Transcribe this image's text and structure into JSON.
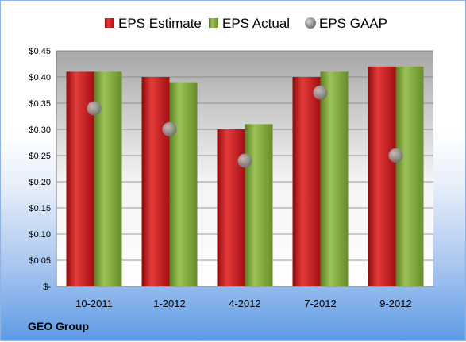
{
  "company": "GEO Group",
  "chart_data": {
    "type": "bar",
    "categories": [
      "10-2011",
      "1-2012",
      "4-2012",
      "7-2012",
      "9-2012"
    ],
    "series": [
      {
        "name": "EPS Estimate",
        "kind": "bar",
        "color": "#c8171b",
        "values": [
          0.41,
          0.4,
          0.3,
          0.4,
          0.42
        ]
      },
      {
        "name": "EPS Actual",
        "kind": "bar",
        "color": "#7fa33c",
        "values": [
          0.41,
          0.39,
          0.31,
          0.41,
          0.42
        ]
      },
      {
        "name": "EPS GAAP",
        "kind": "marker",
        "color": "#9a9a9a",
        "values": [
          0.34,
          0.3,
          0.24,
          0.37,
          0.25
        ]
      }
    ],
    "ylim": [
      0,
      0.45
    ],
    "yticks": [
      {
        "value": 0,
        "label": "$-"
      },
      {
        "value": 0.05,
        "label": "$0.05"
      },
      {
        "value": 0.1,
        "label": "$0.10"
      },
      {
        "value": 0.15,
        "label": "$0.15"
      },
      {
        "value": 0.2,
        "label": "$0.20"
      },
      {
        "value": 0.25,
        "label": "$0.25"
      },
      {
        "value": 0.3,
        "label": "$0.30"
      },
      {
        "value": 0.35,
        "label": "$0.35"
      },
      {
        "value": 0.4,
        "label": "$0.40"
      },
      {
        "value": 0.45,
        "label": "$0.45"
      }
    ],
    "grid": true,
    "legend_position": "top"
  }
}
